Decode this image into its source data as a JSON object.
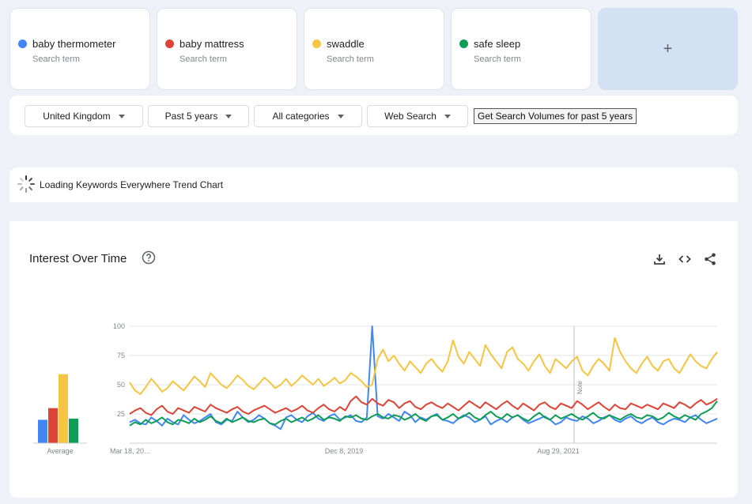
{
  "search_terms": [
    {
      "name": "baby thermometer",
      "sub": "Search term",
      "color": "#4285f4"
    },
    {
      "name": "baby mattress",
      "sub": "Search term",
      "color": "#db4437"
    },
    {
      "name": "swaddle",
      "sub": "Search term",
      "color": "#f4c542"
    },
    {
      "name": "safe sleep",
      "sub": "Search term",
      "color": "#0f9d58"
    }
  ],
  "add_term": {
    "label": "+"
  },
  "filters": {
    "region": "United Kingdom",
    "period": "Past 5 years",
    "category": "All categories",
    "search_type": "Web Search",
    "volumes_button": "Get Search Volumes for past 5 years"
  },
  "loading": {
    "text": "Loading Keywords Everywhere Trend Chart"
  },
  "chart_header": {
    "title": "Interest Over Time",
    "icons": [
      "help-icon",
      "download-icon",
      "embed-icon",
      "share-icon"
    ]
  },
  "chart_data": {
    "type": "line",
    "title": "Interest Over Time",
    "y_ticks": [
      "100",
      "75",
      "50",
      "25"
    ],
    "ylim": [
      0,
      100
    ],
    "x_tick_labels": [
      "Mar 18, 20...",
      "Dec 8, 2019",
      "Aug 29, 2021"
    ],
    "note_label": "Note",
    "grid": true,
    "average": {
      "label": "Average",
      "values": [
        {
          "series": "baby thermometer",
          "value": 20
        },
        {
          "series": "baby mattress",
          "value": 30
        },
        {
          "series": "swaddle",
          "value": 59
        },
        {
          "series": "safe sleep",
          "value": 21
        }
      ]
    },
    "series": [
      {
        "name": "baby thermometer",
        "color": "#4285f4",
        "values": [
          18,
          20,
          17,
          16,
          22,
          19,
          15,
          21,
          18,
          16,
          24,
          20,
          17,
          19,
          22,
          25,
          18,
          16,
          20,
          19,
          27,
          22,
          18,
          20,
          24,
          21,
          17,
          15,
          12,
          22,
          24,
          20,
          18,
          23,
          26,
          21,
          19,
          23,
          25,
          20,
          22,
          24,
          19,
          18,
          22,
          100,
          23,
          21,
          25,
          22,
          19,
          27,
          24,
          18,
          22,
          20,
          23,
          25,
          20,
          19,
          17,
          21,
          24,
          22,
          18,
          20,
          23,
          16,
          19,
          21,
          18,
          22,
          24,
          20,
          17,
          19,
          21,
          23,
          20,
          16,
          18,
          22,
          20,
          19,
          23,
          21,
          17,
          19,
          22,
          24,
          20,
          18,
          21,
          23,
          19,
          17,
          20,
          22,
          18,
          16,
          19,
          21,
          20,
          18,
          22,
          24,
          20,
          17,
          19,
          21
        ]
      },
      {
        "name": "baby mattress",
        "color": "#db4437",
        "values": [
          25,
          28,
          30,
          26,
          24,
          29,
          32,
          27,
          25,
          30,
          28,
          26,
          31,
          29,
          27,
          33,
          30,
          28,
          26,
          29,
          31,
          27,
          25,
          28,
          30,
          32,
          29,
          26,
          28,
          30,
          27,
          29,
          32,
          28,
          26,
          30,
          33,
          29,
          27,
          31,
          28,
          36,
          40,
          35,
          33,
          38,
          34,
          32,
          37,
          35,
          30,
          34,
          36,
          31,
          29,
          33,
          35,
          32,
          30,
          34,
          31,
          28,
          32,
          36,
          33,
          30,
          35,
          32,
          29,
          33,
          36,
          32,
          29,
          34,
          31,
          28,
          33,
          35,
          31,
          29,
          34,
          32,
          30,
          36,
          33,
          29,
          32,
          35,
          31,
          28,
          33,
          30,
          29,
          34,
          32,
          30,
          33,
          31,
          29,
          34,
          32,
          30,
          35,
          33,
          30,
          34,
          37,
          33,
          35,
          38
        ]
      },
      {
        "name": "swaddle",
        "color": "#f4c542",
        "values": [
          52,
          45,
          42,
          48,
          55,
          50,
          44,
          47,
          53,
          49,
          45,
          51,
          57,
          53,
          48,
          60,
          55,
          50,
          47,
          52,
          58,
          54,
          49,
          46,
          51,
          56,
          52,
          47,
          50,
          55,
          49,
          53,
          58,
          54,
          50,
          55,
          49,
          52,
          56,
          51,
          54,
          60,
          57,
          53,
          48,
          50,
          72,
          80,
          70,
          75,
          68,
          62,
          70,
          65,
          60,
          68,
          72,
          66,
          61,
          70,
          88,
          74,
          68,
          78,
          72,
          66,
          84,
          76,
          70,
          64,
          78,
          82,
          72,
          68,
          62,
          70,
          76,
          66,
          60,
          72,
          68,
          64,
          70,
          74,
          62,
          58,
          66,
          72,
          68,
          62,
          90,
          78,
          70,
          64,
          60,
          68,
          74,
          66,
          62,
          70,
          72,
          64,
          60,
          68,
          76,
          70,
          66,
          64,
          72,
          78
        ]
      },
      {
        "name": "safe sleep",
        "color": "#0f9d58",
        "values": [
          15,
          18,
          16,
          20,
          17,
          19,
          22,
          18,
          16,
          20,
          19,
          17,
          21,
          18,
          20,
          23,
          19,
          17,
          21,
          18,
          20,
          22,
          19,
          18,
          20,
          21,
          17,
          16,
          19,
          21,
          18,
          20,
          22,
          19,
          21,
          24,
          20,
          22,
          21,
          19,
          23,
          22,
          24,
          21,
          20,
          23,
          25,
          22,
          21,
          24,
          23,
          20,
          22,
          25,
          21,
          19,
          23,
          24,
          20,
          22,
          25,
          21,
          23,
          26,
          22,
          20,
          24,
          27,
          23,
          21,
          25,
          22,
          24,
          21,
          19,
          23,
          26,
          22,
          20,
          24,
          21,
          23,
          25,
          22,
          20,
          23,
          26,
          22,
          21,
          24,
          22,
          20,
          23,
          25,
          22,
          21,
          24,
          23,
          20,
          22,
          26,
          23,
          21,
          24,
          22,
          20,
          25,
          27,
          30,
          36
        ]
      }
    ]
  }
}
